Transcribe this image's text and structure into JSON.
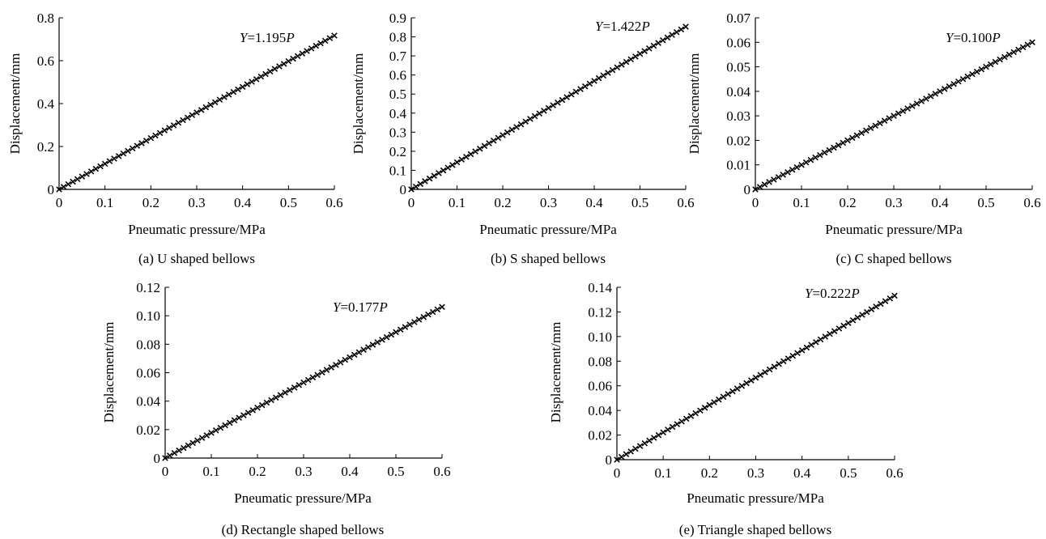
{
  "chart_data": [
    {
      "type": "scatter",
      "caption": "(a) U shaped bellows",
      "xlabel": "Pneumatic pressure/MPa",
      "ylabel": "Displacement/mm",
      "xlim": [
        0,
        0.6
      ],
      "ylim": [
        0,
        0.8
      ],
      "xticks": [
        "0",
        "0.1",
        "0.2",
        "0.3",
        "0.4",
        "0.5",
        "0.6"
      ],
      "yticks": [
        "0",
        "0.2",
        "0.4",
        "0.6",
        "0.8"
      ],
      "equation": {
        "var": "Y",
        "rest": "=1.195",
        "p": "P"
      },
      "slope": 1.195,
      "series": [
        {
          "x_start": 0,
          "x_end": 0.6,
          "points": 60
        }
      ],
      "grid": false,
      "legend": false
    },
    {
      "type": "scatter",
      "caption": "(b) S shaped bellows",
      "xlabel": "Pneumatic pressure/MPa",
      "ylabel": "Displacement/mm",
      "xlim": [
        0,
        0.6
      ],
      "ylim": [
        0,
        0.9
      ],
      "xticks": [
        "0",
        "0.1",
        "0.2",
        "0.3",
        "0.4",
        "0.5",
        "0.6"
      ],
      "yticks": [
        "0",
        "0.1",
        "0.2",
        "0.3",
        "0.4",
        "0.5",
        "0.6",
        "0.7",
        "0.8",
        "0.9"
      ],
      "equation": {
        "var": "Y",
        "rest": "=1.422",
        "p": "P"
      },
      "slope": 1.422,
      "series": [
        {
          "x_start": 0,
          "x_end": 0.6,
          "points": 60
        }
      ],
      "grid": false,
      "legend": false
    },
    {
      "type": "scatter",
      "caption": "(c) C shaped bellows",
      "xlabel": "Pneumatic pressure/MPa",
      "ylabel": "Displacement/mm",
      "xlim": [
        0,
        0.6
      ],
      "ylim": [
        0,
        0.07
      ],
      "xticks": [
        "0",
        "0.1",
        "0.2",
        "0.3",
        "0.4",
        "0.5",
        "0.6"
      ],
      "yticks": [
        "0",
        "0.01",
        "0.02",
        "0.03",
        "0.04",
        "0.05",
        "0.06",
        "0.07"
      ],
      "equation": {
        "var": "Y",
        "rest": "=0.100",
        "p": "P"
      },
      "slope": 0.1,
      "series": [
        {
          "x_start": 0,
          "x_end": 0.6,
          "points": 60
        }
      ],
      "grid": false,
      "legend": false
    },
    {
      "type": "scatter",
      "caption": "(d) Rectangle shaped bellows",
      "xlabel": "Pneumatic pressure/MPa",
      "ylabel": "Displacement/mm",
      "xlim": [
        0,
        0.6
      ],
      "ylim": [
        0,
        0.12
      ],
      "xticks": [
        "0",
        "0.1",
        "0.2",
        "0.3",
        "0.4",
        "0.5",
        "0.6"
      ],
      "yticks": [
        "0",
        "0.02",
        "0.04",
        "0.06",
        "0.08",
        "0.10",
        "0.12"
      ],
      "equation": {
        "var": "Y",
        "rest": "=0.177",
        "p": "P"
      },
      "slope": 0.177,
      "series": [
        {
          "x_start": 0,
          "x_end": 0.6,
          "points": 60
        }
      ],
      "grid": false,
      "legend": false
    },
    {
      "type": "scatter",
      "caption": "(e) Triangle shaped bellows",
      "xlabel": "Pneumatic pressure/MPa",
      "ylabel": "Displacement/mm",
      "xlim": [
        0,
        0.6
      ],
      "ylim": [
        0,
        0.14
      ],
      "xticks": [
        "0",
        "0.1",
        "0.2",
        "0.3",
        "0.4",
        "0.5",
        "0.6"
      ],
      "yticks": [
        "0",
        "0.02",
        "0.04",
        "0.06",
        "0.08",
        "0.10",
        "0.12",
        "0.14"
      ],
      "equation": {
        "var": "Y",
        "rest": "=0.222",
        "p": "P"
      },
      "slope": 0.222,
      "series": [
        {
          "x_start": 0,
          "x_end": 0.6,
          "points": 60
        }
      ],
      "grid": false,
      "legend": false
    }
  ]
}
